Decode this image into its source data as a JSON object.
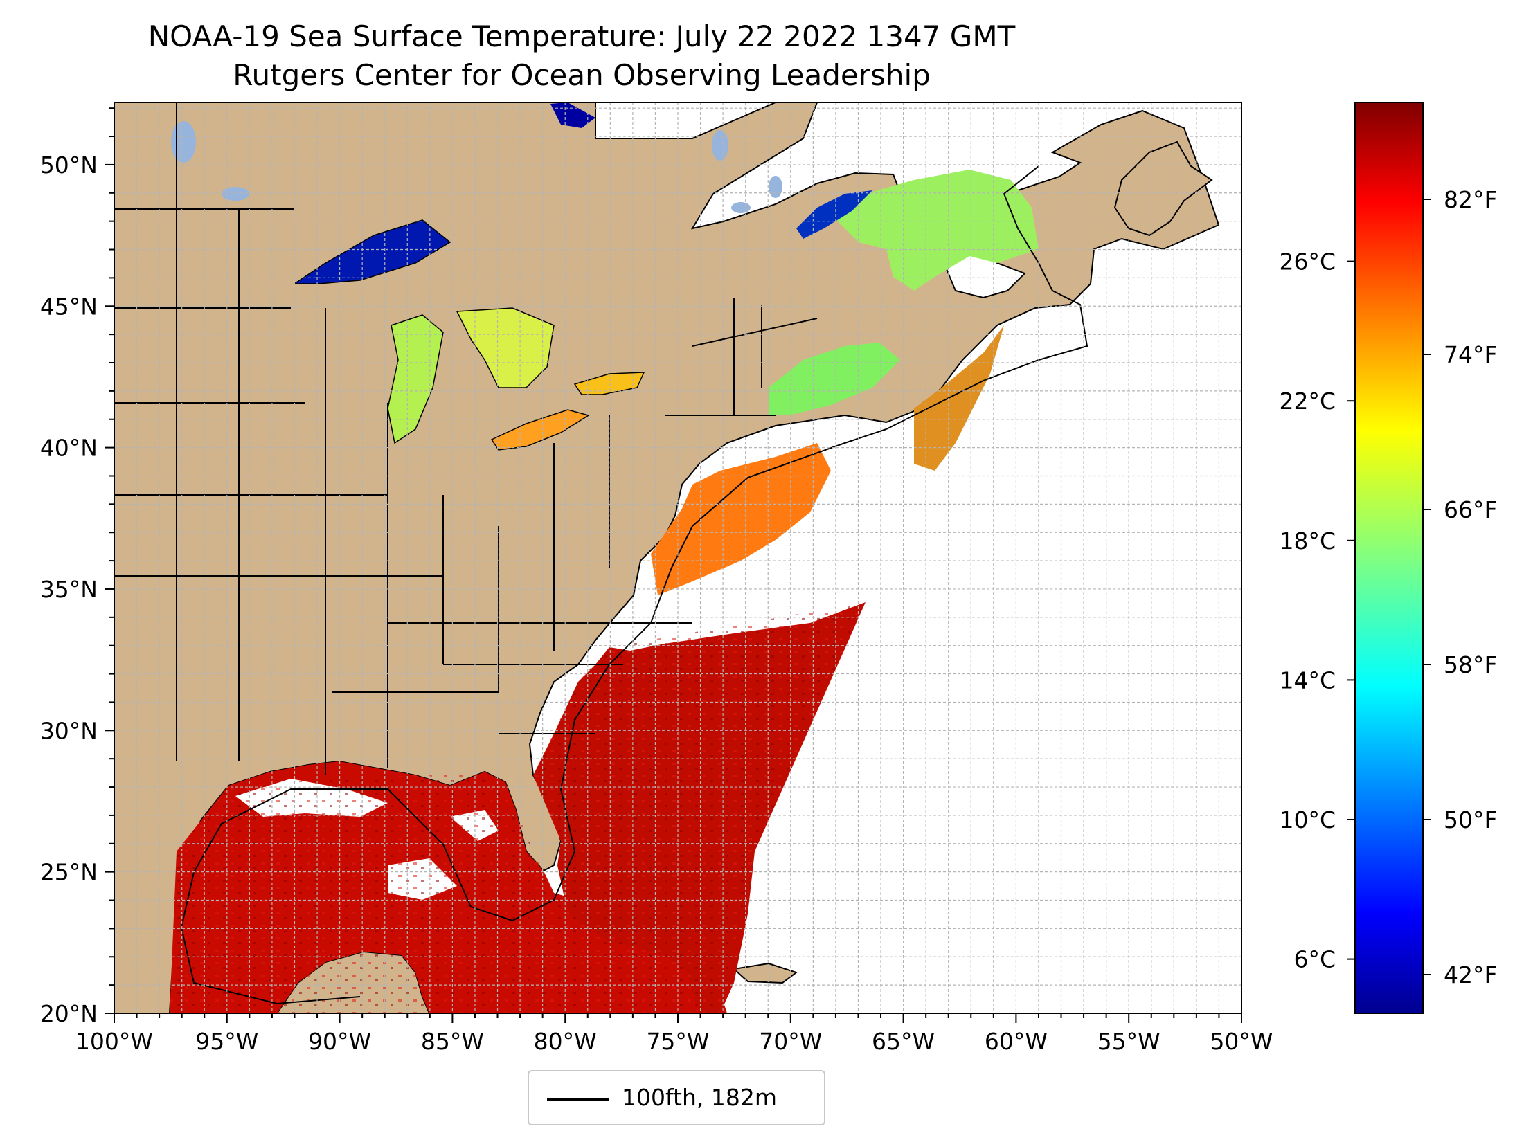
{
  "title": {
    "line1": "NOAA-19 Sea Surface Temperature: July 22 2022 1347 GMT",
    "line2": "Rutgers Center for Ocean Observing Leadership"
  },
  "map": {
    "lon_range": [
      -100,
      -50
    ],
    "lat_range": [
      20,
      52.2
    ],
    "lon_ticks": [
      {
        "value": -100,
        "label": "100°W"
      },
      {
        "value": -95,
        "label": "95°W"
      },
      {
        "value": -90,
        "label": "90°W"
      },
      {
        "value": -85,
        "label": "85°W"
      },
      {
        "value": -80,
        "label": "80°W"
      },
      {
        "value": -75,
        "label": "75°W"
      },
      {
        "value": -70,
        "label": "70°W"
      },
      {
        "value": -65,
        "label": "65°W"
      },
      {
        "value": -60,
        "label": "60°W"
      },
      {
        "value": -55,
        "label": "55°W"
      },
      {
        "value": -50,
        "label": "50°W"
      }
    ],
    "lat_ticks": [
      {
        "value": 20,
        "label": "20°N"
      },
      {
        "value": 25,
        "label": "25°N"
      },
      {
        "value": 30,
        "label": "30°N"
      },
      {
        "value": 35,
        "label": "35°N"
      },
      {
        "value": 40,
        "label": "40°N"
      },
      {
        "value": 45,
        "label": "45°N"
      },
      {
        "value": 50,
        "label": "50°N"
      }
    ],
    "grid": "dashed 1-degree",
    "colors": {
      "land": "#d2b48c",
      "lakes_no_data": "#96b4dc",
      "ocean_no_data": "#ffffff",
      "borders": "#000000",
      "grid": "#b4b4b4"
    }
  },
  "colorbar": {
    "colormap": "jet",
    "f_range": [
      40,
      87
    ],
    "c_ticks": [
      {
        "value": 6,
        "label": "6°C"
      },
      {
        "value": 10,
        "label": "10°C"
      },
      {
        "value": 14,
        "label": "14°C"
      },
      {
        "value": 18,
        "label": "18°C"
      },
      {
        "value": 22,
        "label": "22°C"
      },
      {
        "value": 26,
        "label": "26°C"
      }
    ],
    "f_ticks": [
      {
        "value": 42,
        "label": "42°F"
      },
      {
        "value": 50,
        "label": "50°F"
      },
      {
        "value": 58,
        "label": "58°F"
      },
      {
        "value": 66,
        "label": "66°F"
      },
      {
        "value": 74,
        "label": "74°F"
      },
      {
        "value": 82,
        "label": "82°F"
      }
    ]
  },
  "legend": {
    "label": "100fth, 182m",
    "line_color": "#000000"
  }
}
